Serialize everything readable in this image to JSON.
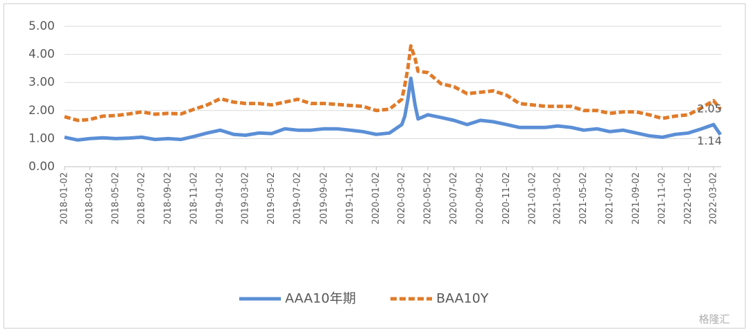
{
  "chart_data": {
    "type": "line",
    "x": [
      "2018-01-02",
      "2018-02-02",
      "2018-03-02",
      "2018-04-02",
      "2018-05-02",
      "2018-06-02",
      "2018-07-02",
      "2018-08-02",
      "2018-09-02",
      "2018-10-02",
      "2018-11-02",
      "2018-12-02",
      "2019-01-02",
      "2019-02-02",
      "2019-03-02",
      "2019-04-02",
      "2019-05-02",
      "2019-06-02",
      "2019-07-02",
      "2019-08-02",
      "2019-09-02",
      "2019-10-02",
      "2019-11-02",
      "2019-12-02",
      "2020-01-02",
      "2020-02-02",
      "2020-03-02",
      "2020-03-09",
      "2020-03-16",
      "2020-03-23",
      "2020-04-02",
      "2020-04-09",
      "2020-05-02",
      "2020-06-02",
      "2020-07-02",
      "2020-08-02",
      "2020-09-02",
      "2020-10-02",
      "2020-11-02",
      "2020-12-02",
      "2021-01-02",
      "2021-02-02",
      "2021-03-02",
      "2021-04-02",
      "2021-05-02",
      "2021-06-02",
      "2021-07-02",
      "2021-08-02",
      "2021-09-02",
      "2021-10-02",
      "2021-11-02",
      "2021-12-02",
      "2022-01-02",
      "2022-02-02",
      "2022-03-02",
      "2022-03-18"
    ],
    "series": [
      {
        "name": "AAA10年期",
        "color": "#5b8fd6",
        "dash": false,
        "values": [
          1.05,
          0.95,
          1.0,
          1.03,
          1.0,
          1.02,
          1.05,
          0.97,
          1.0,
          0.97,
          1.08,
          1.2,
          1.3,
          1.15,
          1.12,
          1.2,
          1.18,
          1.35,
          1.3,
          1.3,
          1.35,
          1.35,
          1.3,
          1.25,
          1.15,
          1.2,
          1.5,
          1.8,
          2.4,
          3.15,
          2.2,
          1.7,
          1.85,
          1.75,
          1.65,
          1.5,
          1.65,
          1.6,
          1.5,
          1.4,
          1.4,
          1.4,
          1.45,
          1.4,
          1.3,
          1.35,
          1.25,
          1.3,
          1.2,
          1.1,
          1.05,
          1.15,
          1.2,
          1.35,
          1.5,
          1.14
        ]
      },
      {
        "name": "BAA10Y",
        "color": "#e07b2a",
        "dash": true,
        "values": [
          1.78,
          1.65,
          1.68,
          1.8,
          1.82,
          1.88,
          1.95,
          1.87,
          1.9,
          1.88,
          2.05,
          2.2,
          2.42,
          2.3,
          2.25,
          2.25,
          2.2,
          2.3,
          2.4,
          2.25,
          2.25,
          2.22,
          2.18,
          2.15,
          2.0,
          2.05,
          2.4,
          2.9,
          3.5,
          4.3,
          3.85,
          3.4,
          3.35,
          2.95,
          2.85,
          2.6,
          2.65,
          2.7,
          2.55,
          2.25,
          2.2,
          2.15,
          2.15,
          2.15,
          2.0,
          2.0,
          1.9,
          1.95,
          1.95,
          1.85,
          1.72,
          1.8,
          1.85,
          2.1,
          2.35,
          2.05
        ]
      }
    ],
    "xlim": [
      "2018-01-02",
      "2022-03-20"
    ],
    "xticks": [
      "2018-01-02",
      "2018-03-02",
      "2018-05-02",
      "2018-07-02",
      "2018-09-02",
      "2018-11-02",
      "2019-01-02",
      "2019-03-02",
      "2019-05-02",
      "2019-07-02",
      "2019-09-02",
      "2019-11-02",
      "2020-01-02",
      "2020-03-02",
      "2020-05-02",
      "2020-07-02",
      "2020-09-02",
      "2020-11-02",
      "2021-01-02",
      "2021-03-02",
      "2021-05-02",
      "2021-07-02",
      "2021-09-02",
      "2021-11-02",
      "2022-01-02",
      "2022-03-02"
    ],
    "ylim": [
      0,
      5
    ],
    "yticks": [
      {
        "value": 0,
        "label": "0.00"
      },
      {
        "value": 1,
        "label": "1.00"
      },
      {
        "value": 2,
        "label": "2.00"
      },
      {
        "value": 3,
        "label": "3.00"
      },
      {
        "value": 4,
        "label": "4.00"
      },
      {
        "value": 5,
        "label": "5.00"
      }
    ],
    "grid": true,
    "end_labels": true,
    "legend": "bottom",
    "watermark": "格隆汇"
  }
}
